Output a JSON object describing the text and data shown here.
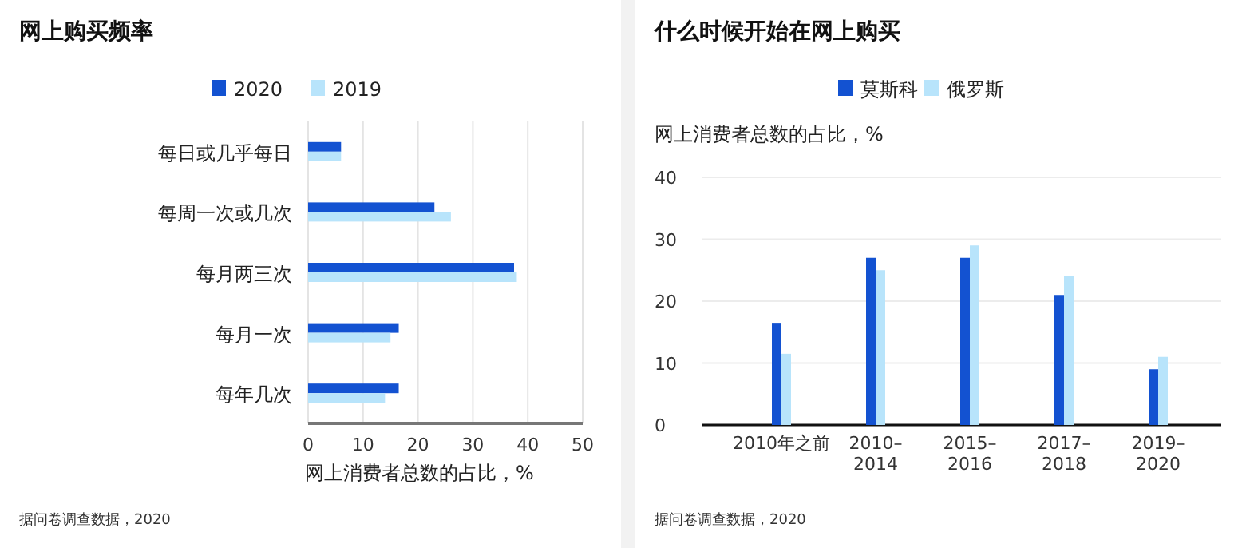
{
  "chart_data": [
    {
      "type": "bar",
      "title": "网上购买频率",
      "orientation": "horizontal",
      "categories": [
        "每日或几乎每日",
        "每周一次或几次",
        "每月两三次",
        "每月一次",
        "每年几次"
      ],
      "series": [
        {
          "name": "2020",
          "color": "#1352d1",
          "values": [
            6,
            23,
            37.5,
            16.5,
            16.5
          ]
        },
        {
          "name": "2019",
          "color": "#b8e4fb",
          "values": [
            6,
            26,
            38,
            15,
            14
          ]
        }
      ],
      "xlim": [
        0,
        50
      ],
      "xticks": [
        0,
        10,
        20,
        30,
        40,
        50
      ],
      "xlabel": "网上消费者总数的占比，%",
      "grid": "x",
      "legend": "top",
      "annotations": [
        "据问卷调查数据，2020"
      ]
    },
    {
      "type": "bar",
      "title": "什么时候开始在网上购买",
      "categories": [
        "2010年之前",
        "2010–\n2014",
        "2015–\n2016",
        "2017–\n2018",
        "2019–\n2020"
      ],
      "series": [
        {
          "name": "莫斯科",
          "color": "#1352d1",
          "values": [
            16.5,
            27,
            27,
            21,
            9
          ]
        },
        {
          "name": "俄罗斯",
          "color": "#b8e4fb",
          "values": [
            11.5,
            25,
            29,
            24,
            11
          ]
        }
      ],
      "ylim": [
        0,
        40
      ],
      "yticks": [
        0,
        10,
        20,
        30,
        40
      ],
      "ylabel": "网上消费者总数的占比，%",
      "grid": "y",
      "legend": "top",
      "annotations": [
        "据问卷调查数据，2020"
      ]
    }
  ]
}
